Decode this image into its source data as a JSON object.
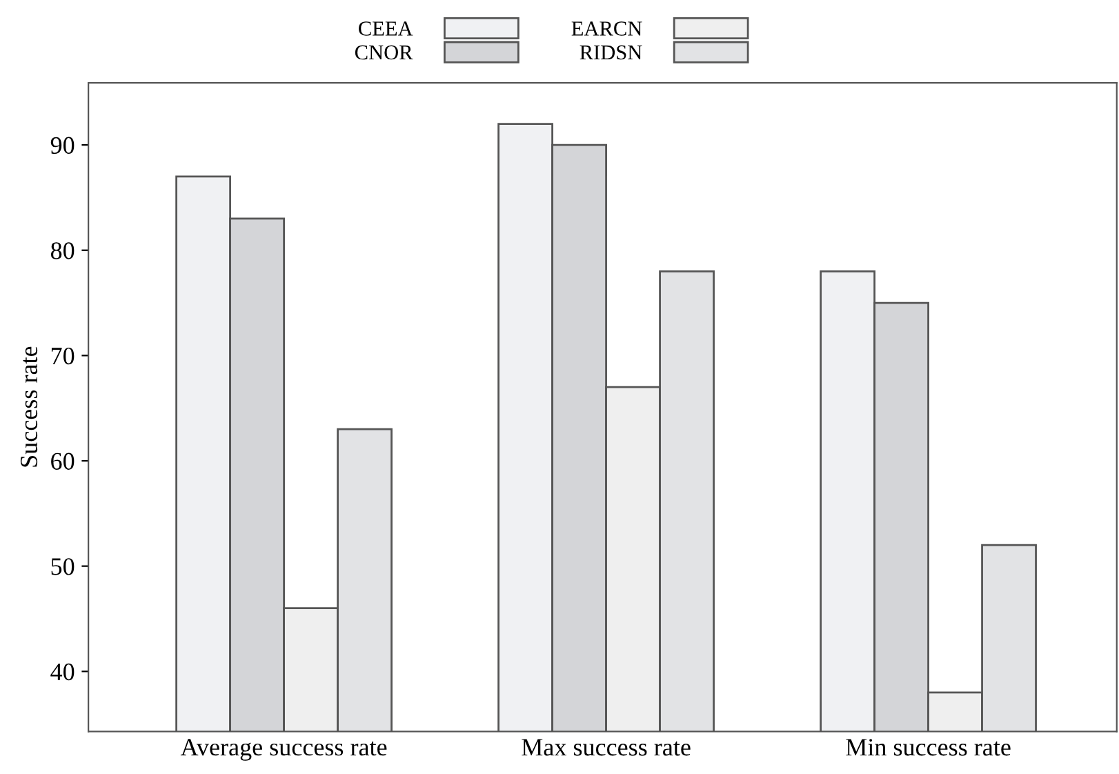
{
  "chart_data": {
    "type": "bar",
    "ylabel": "Success rate",
    "categories": [
      "Average success rate",
      "Max success rate",
      "Min success rate"
    ],
    "series": [
      {
        "name": "CEEA",
        "color": "#f0f1f3",
        "values": [
          87,
          92,
          78
        ]
      },
      {
        "name": "CNOR",
        "color": "#d4d5d8",
        "values": [
          83,
          90,
          75
        ]
      },
      {
        "name": "EARCN",
        "color": "#efefef",
        "values": [
          46,
          67,
          38
        ]
      },
      {
        "name": "RIDSN",
        "color": "#e2e3e5",
        "values": [
          63,
          78,
          52
        ]
      }
    ],
    "ylim": [
      34.3,
      95.9
    ],
    "yticks": [
      40,
      50,
      60,
      70,
      80,
      90
    ],
    "grid": false,
    "legend": "top"
  }
}
